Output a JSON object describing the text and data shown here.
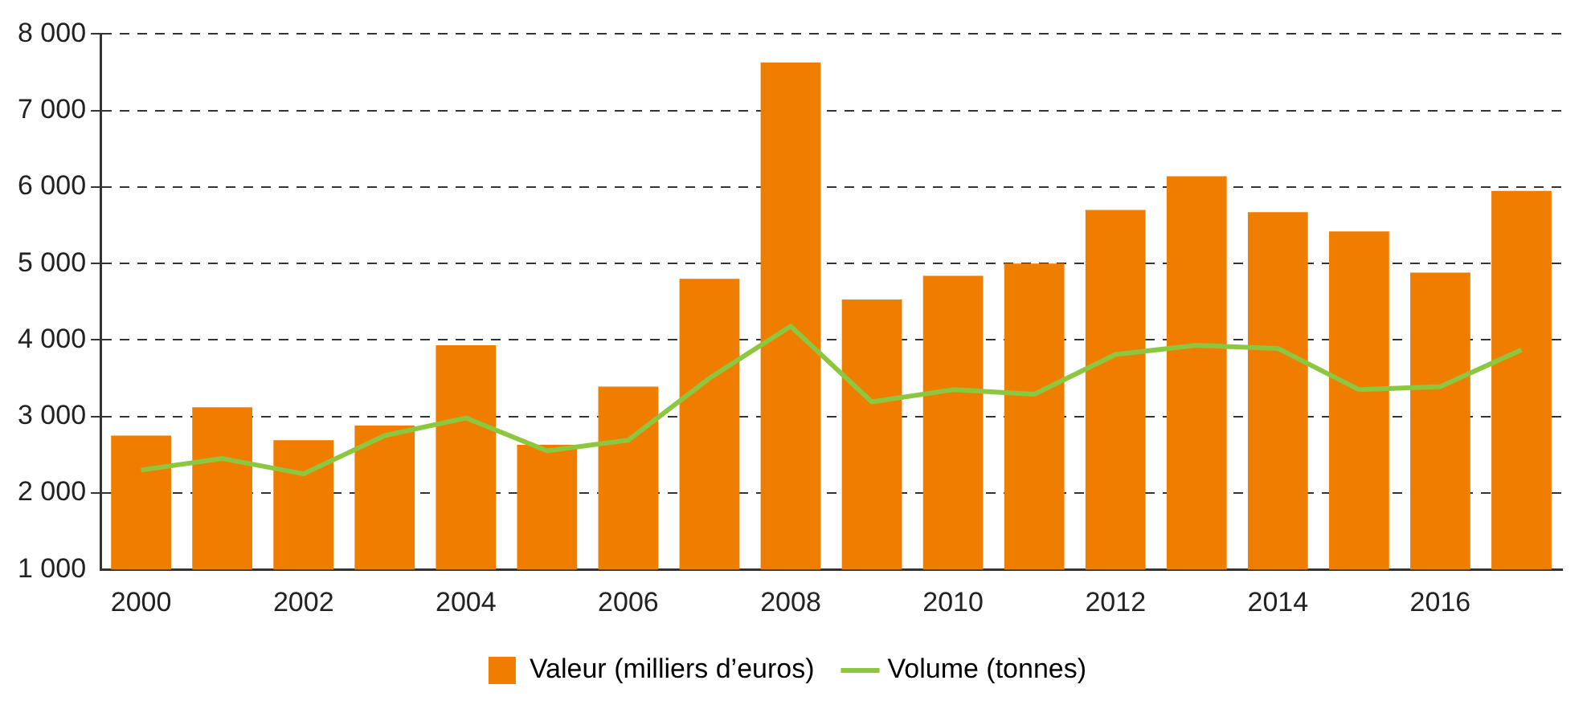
{
  "chart_data": {
    "type": "bar",
    "categories": [
      "2000",
      null,
      "2002",
      null,
      "2004",
      null,
      "2006",
      null,
      "2008",
      null,
      "2010",
      null,
      "2012",
      null,
      "2014",
      null,
      "2016",
      null
    ],
    "series": [
      {
        "name": "Valeur (milliers d’euros)",
        "color": "#ef7d00",
        "values": [
          2750,
          3120,
          2690,
          2880,
          3930,
          2630,
          3390,
          4800,
          7630,
          4530,
          4840,
          5000,
          5700,
          6140,
          5670,
          5420,
          4880,
          5950
        ]
      },
      {
        "name": "Volume (tonnes)",
        "type": "line",
        "color": "#8dc63f",
        "values": [
          2300,
          2450,
          2250,
          2750,
          2980,
          2550,
          2690,
          3500,
          4180,
          3190,
          3350,
          3290,
          3810,
          3930,
          3890,
          3350,
          3390,
          3870
        ]
      }
    ],
    "ylim": [
      1000,
      8000
    ],
    "yticks": [
      {
        "value": 1000,
        "label": "1 000"
      },
      {
        "value": 2000,
        "label": "2 000"
      },
      {
        "value": 3000,
        "label": "3 000"
      },
      {
        "value": 4000,
        "label": "4 000"
      },
      {
        "value": 5000,
        "label": "5 000"
      },
      {
        "value": 6000,
        "label": "6 000"
      },
      {
        "value": 7000,
        "label": "7 000"
      },
      {
        "value": 8000,
        "label": "8 000"
      }
    ],
    "grid": "y",
    "legend": "bottom",
    "marker": "none",
    "line_style": "solid"
  }
}
